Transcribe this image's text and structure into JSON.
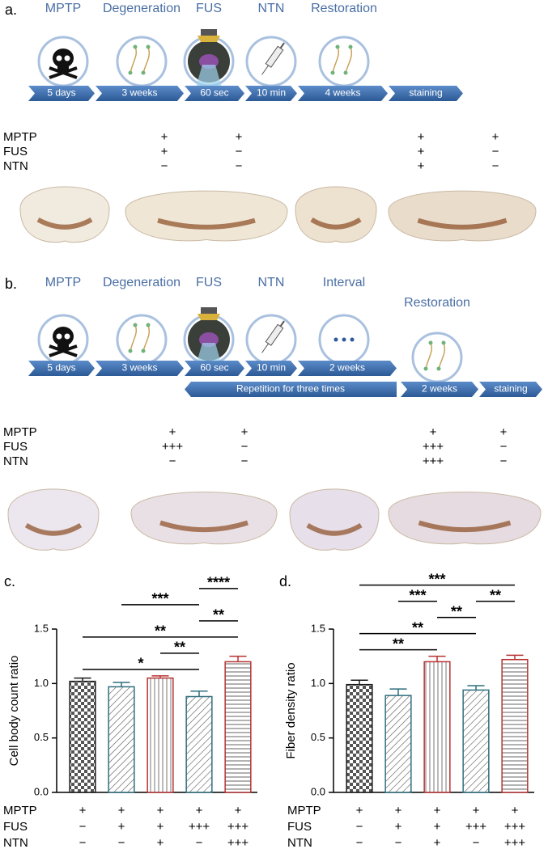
{
  "panel_a": {
    "label": "a.",
    "steps": [
      "MPTP",
      "Degeneration",
      "FUS",
      "NTN",
      "Restoration"
    ],
    "durations": [
      "5 days",
      "3 weeks",
      "60 sec",
      "10 min",
      "4 weeks",
      "staining"
    ],
    "conditions": {
      "rows": [
        "MPTP",
        "FUS",
        "NTN"
      ],
      "columns": [
        [
          "+",
          "+",
          "−"
        ],
        [
          "+",
          "−",
          "−"
        ],
        [
          "+",
          "+",
          "+"
        ],
        [
          "+",
          "−",
          "−"
        ]
      ]
    }
  },
  "panel_b": {
    "label": "b.",
    "steps": [
      "MPTP",
      "Degeneration",
      "FUS",
      "NTN",
      "Interval",
      "Restoration"
    ],
    "durations": [
      "5 days",
      "3 weeks",
      "60 sec",
      "10 min",
      "2 weeks",
      "2 weeks",
      "staining"
    ],
    "repetition": "Repetition for three times",
    "conditions": {
      "rows": [
        "MPTP",
        "FUS",
        "NTN"
      ],
      "columns": [
        [
          "+",
          "+++",
          "−"
        ],
        [
          "+",
          "−",
          "−"
        ],
        [
          "+",
          "+++",
          "+++"
        ],
        [
          "+",
          "−",
          "−"
        ]
      ]
    }
  },
  "chart_data": [
    {
      "type": "bar",
      "panel_label": "c.",
      "ylabel": "Cell body count ratio",
      "category_rows": [
        "MPTP",
        "FUS",
        "NTN"
      ],
      "categories": [
        [
          "+",
          "−",
          "−"
        ],
        [
          "+",
          "+",
          "−"
        ],
        [
          "+",
          "+",
          "+"
        ],
        [
          "+",
          "+++",
          "−"
        ],
        [
          "+",
          "+++",
          "+++"
        ]
      ],
      "values": [
        1.02,
        0.97,
        1.05,
        0.88,
        1.2
      ],
      "errors": [
        0.03,
        0.04,
        0.02,
        0.05,
        0.05
      ],
      "colors": [
        "#1a1a1a",
        "#2f6f7e",
        "#b83232",
        "#2f6f7e",
        "#b83232"
      ],
      "patterns": [
        "checker",
        "diagonal",
        "vertical",
        "diagonal",
        "horizontal"
      ],
      "ylim": [
        0,
        1.5
      ],
      "yticks": [
        {
          "value": 0,
          "label": "0.0"
        },
        {
          "value": 0.5,
          "label": "0.5"
        },
        {
          "value": 1,
          "label": "1.0"
        },
        {
          "value": 1.5,
          "label": "1.5"
        }
      ],
      "annotations": [
        {
          "text": "*",
          "from": 0,
          "to": 3
        },
        {
          "text": "**",
          "from": 2,
          "to": 3
        },
        {
          "text": "**",
          "from": 0,
          "to": 4
        },
        {
          "text": "**",
          "from": 3,
          "to": 4
        },
        {
          "text": "***",
          "from": 1,
          "to": 3
        },
        {
          "text": "****",
          "from": 3,
          "to": 4
        }
      ]
    },
    {
      "type": "bar",
      "panel_label": "d.",
      "ylabel": "Fiber density ratio",
      "category_rows": [
        "MPTP",
        "FUS",
        "NTN"
      ],
      "categories": [
        [
          "+",
          "−",
          "−"
        ],
        [
          "+",
          "+",
          "−"
        ],
        [
          "+",
          "+",
          "+"
        ],
        [
          "+",
          "+++",
          "−"
        ],
        [
          "+",
          "+++",
          "+++"
        ]
      ],
      "values": [
        0.99,
        0.89,
        1.2,
        0.94,
        1.22
      ],
      "errors": [
        0.04,
        0.06,
        0.05,
        0.04,
        0.04
      ],
      "colors": [
        "#1a1a1a",
        "#2f6f7e",
        "#b83232",
        "#2f6f7e",
        "#b83232"
      ],
      "patterns": [
        "checker",
        "diagonal",
        "vertical",
        "diagonal",
        "horizontal"
      ],
      "ylim": [
        0,
        1.5
      ],
      "yticks": [
        {
          "value": 0,
          "label": "0.0"
        },
        {
          "value": 0.5,
          "label": "0.5"
        },
        {
          "value": 1,
          "label": "1.0"
        },
        {
          "value": 1.5,
          "label": "1.5"
        }
      ],
      "annotations": [
        {
          "text": "**",
          "from": 0,
          "to": 2
        },
        {
          "text": "**",
          "from": 0,
          "to": 3
        },
        {
          "text": "**",
          "from": 2,
          "to": 3
        },
        {
          "text": "**",
          "from": 3,
          "to": 4
        },
        {
          "text": "***",
          "from": 1,
          "to": 2
        },
        {
          "text": "***",
          "from": 0,
          "to": 4
        }
      ]
    }
  ]
}
